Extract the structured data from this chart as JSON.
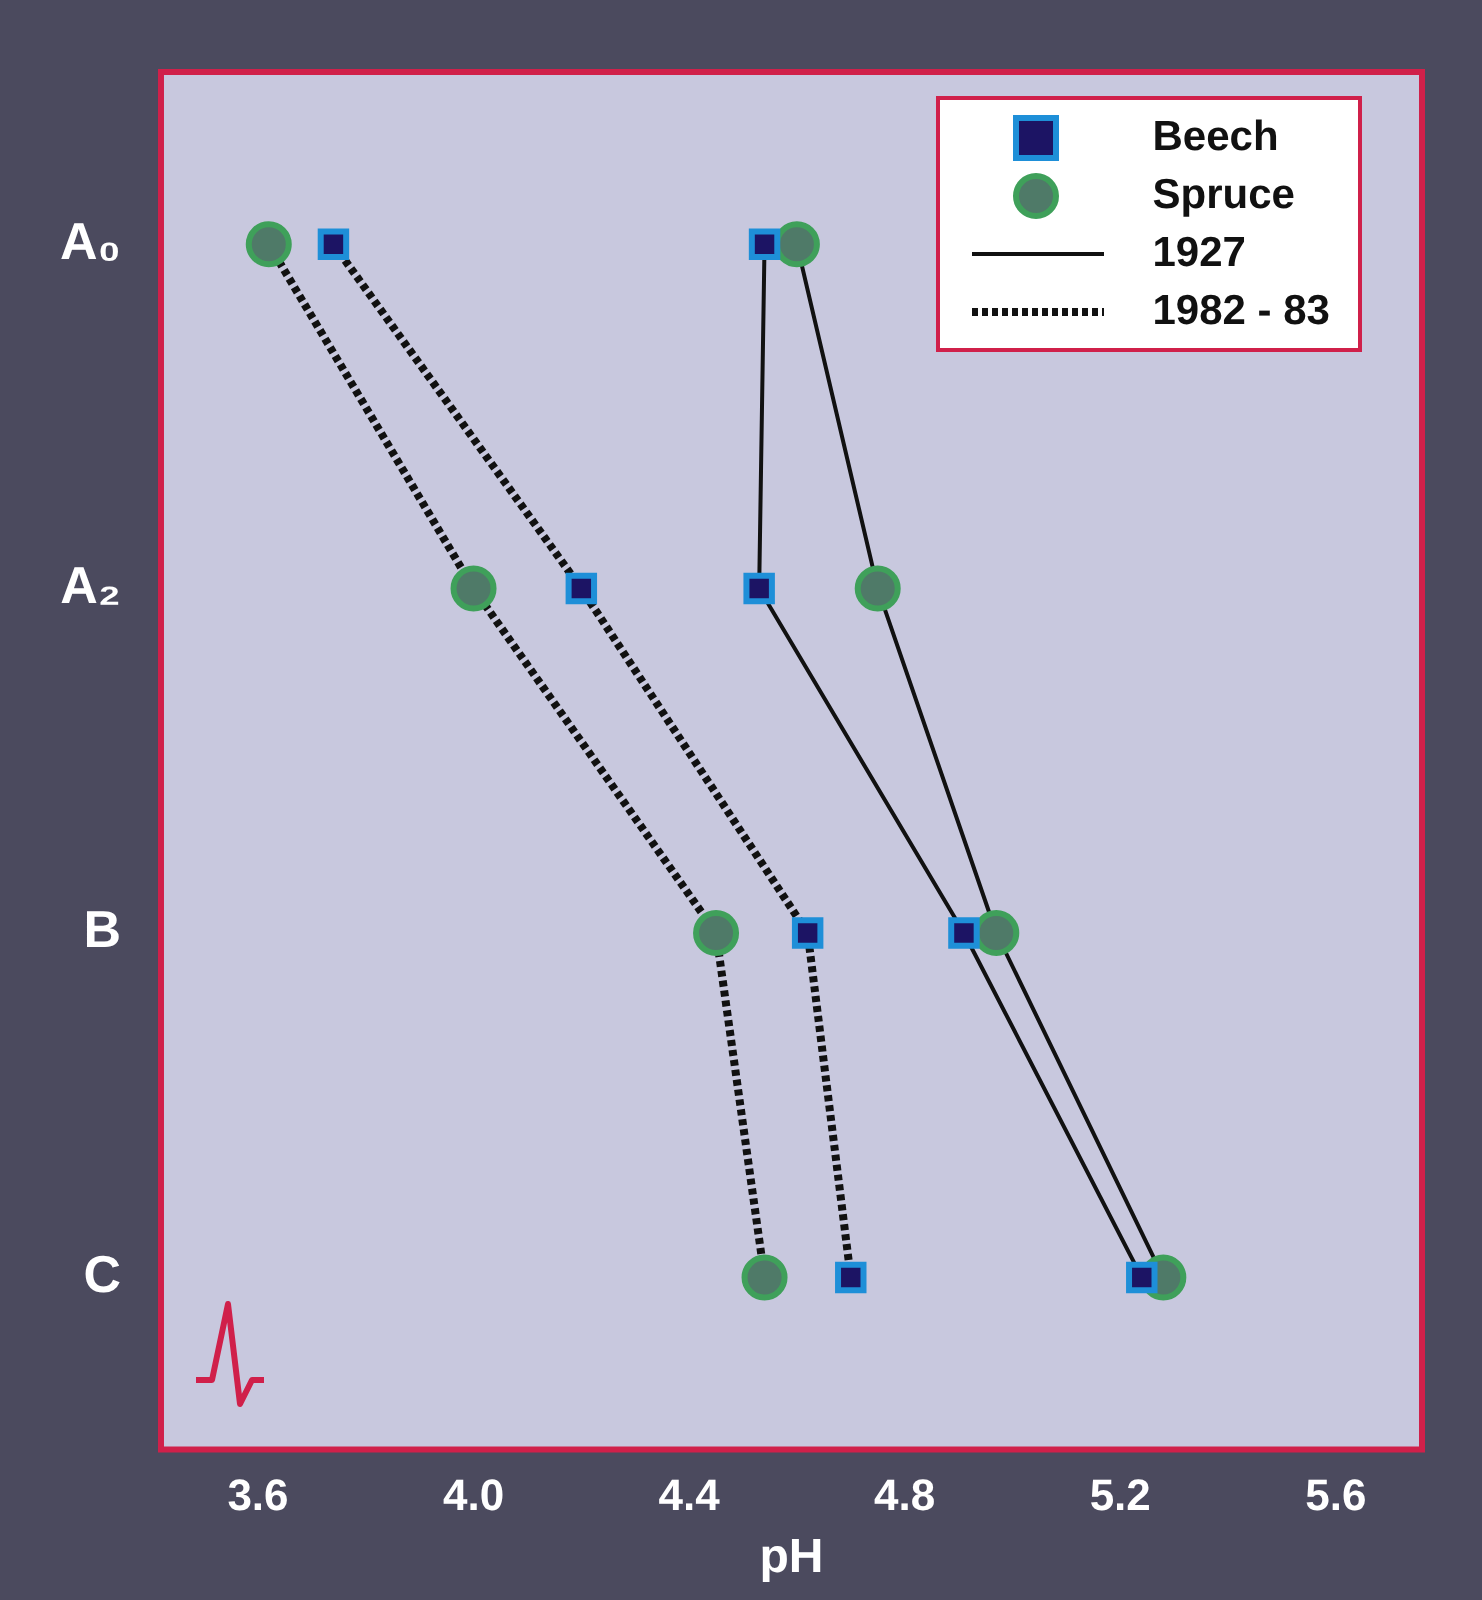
{
  "chart_data": {
    "type": "line",
    "xlabel": "pH",
    "categories": [
      "A₀",
      "A₂",
      "B",
      "C"
    ],
    "xlim": [
      3.42,
      5.76
    ],
    "xticks": [
      3.6,
      {
        "value": 4,
        "label": "4.0"
      },
      4.4,
      4.8,
      5.2,
      5.6
    ],
    "orientation": "horizontal",
    "grid": false,
    "legend": "top right",
    "annotations": [
      "1927",
      "1982 - 83"
    ],
    "series": [
      {
        "name": "Beech",
        "color": "#1c1464",
        "marker": "square",
        "line_style": "solid",
        "values": [
          4.54,
          4.53,
          4.91,
          5.24
        ]
      },
      {
        "name": "Spruce",
        "color": "#4f7a68",
        "marker": "circle",
        "line_style": "solid",
        "values": [
          4.6,
          4.75,
          4.97,
          5.28
        ]
      },
      {
        "color": "#1c1464",
        "marker": "square",
        "line_style": "dotted",
        "values": [
          3.74,
          4.2,
          4.62,
          4.7
        ]
      },
      {
        "color": "#4f7a68",
        "marker": "circle",
        "line_style": "dotted",
        "values": [
          3.62,
          4.0,
          4.45,
          4.54
        ]
      }
    ]
  }
}
